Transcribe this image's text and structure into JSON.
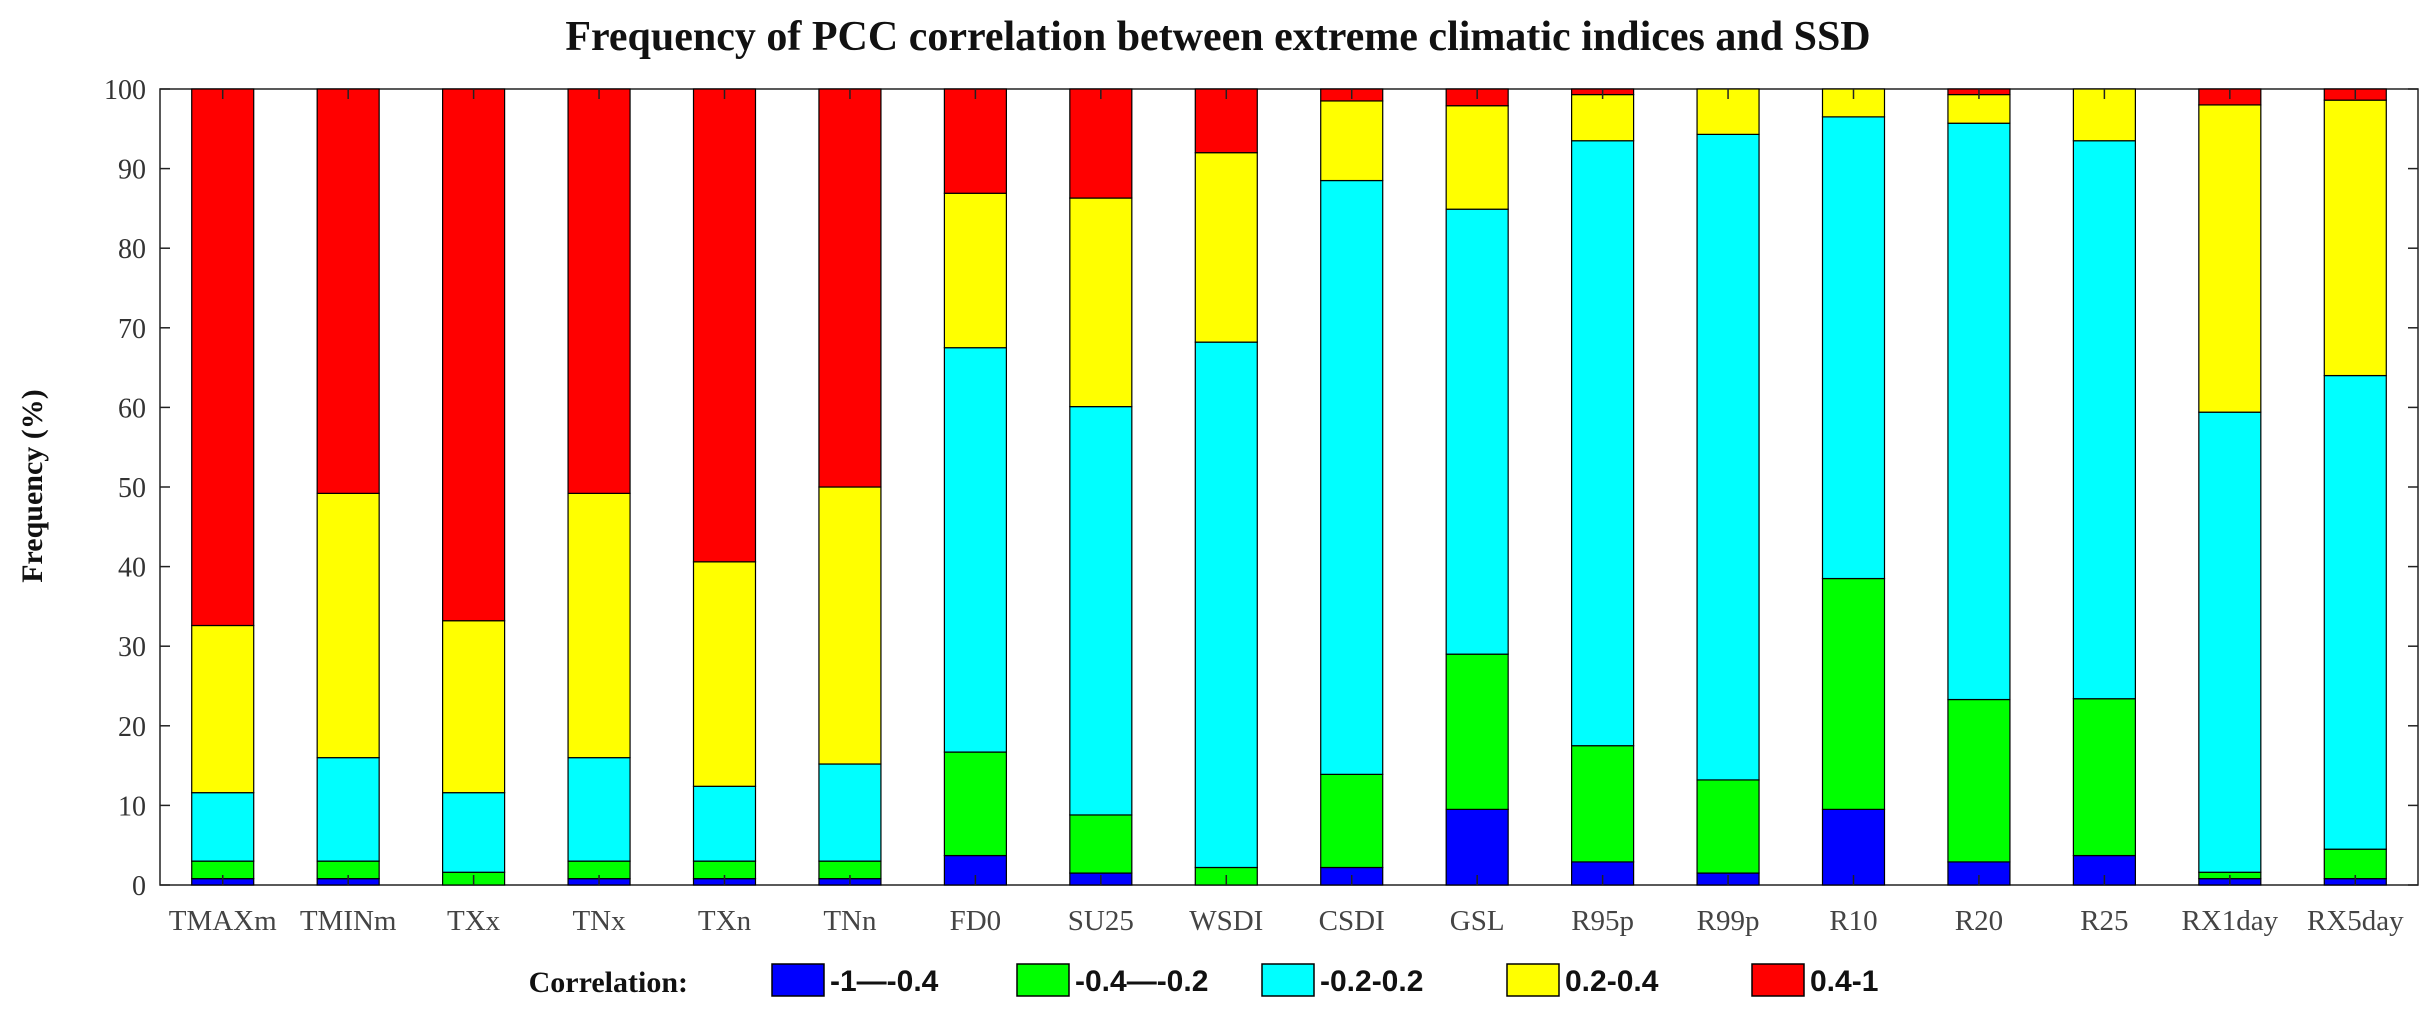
{
  "chart_data": {
    "type": "bar",
    "stacked": true,
    "title": "Frequency of PCC correlation between extreme climatic indices and SSD",
    "xlabel": "",
    "ylabel": "Frequency (%)",
    "ylim": [
      0,
      100
    ],
    "yticks": [
      0,
      10,
      20,
      30,
      40,
      50,
      60,
      70,
      80,
      90,
      100
    ],
    "categories": [
      "TMAXm",
      "TMINm",
      "TXx",
      "TNx",
      "TXn",
      "TNn",
      "FD0",
      "SU25",
      "WSDI",
      "CSDI",
      "GSL",
      "R95p",
      "R99p",
      "R10",
      "R20",
      "R25",
      "RX1day",
      "RX5day"
    ],
    "legend_title": "Correlation:",
    "legend_position": "bottom",
    "series": [
      {
        "name": "-1—-0.4",
        "color": "#0000ff",
        "values": [
          0.8,
          0.8,
          0.0,
          0.8,
          0.8,
          0.8,
          3.7,
          1.5,
          0.0,
          2.2,
          9.5,
          2.9,
          1.5,
          9.5,
          2.9,
          3.7,
          0.8,
          0.8
        ]
      },
      {
        "name": "-0.4—-0.2",
        "color": "#00ff00",
        "values": [
          2.2,
          2.2,
          1.6,
          2.2,
          2.2,
          2.2,
          13.0,
          7.3,
          2.2,
          11.7,
          19.5,
          14.6,
          11.7,
          29.0,
          20.4,
          19.7,
          0.8,
          3.7
        ]
      },
      {
        "name": "-0.2-0.2",
        "color": "#00ffff",
        "values": [
          8.6,
          13.0,
          10.0,
          13.0,
          9.4,
          12.2,
          50.8,
          51.3,
          66.0,
          74.6,
          55.9,
          76.0,
          81.1,
          58.0,
          72.4,
          70.1,
          57.8,
          59.5
        ]
      },
      {
        "name": "0.2-0.4",
        "color": "#ffff00",
        "values": [
          21.0,
          33.2,
          21.6,
          33.2,
          28.2,
          34.8,
          19.4,
          26.2,
          23.8,
          10.0,
          13.0,
          5.8,
          5.7,
          3.5,
          3.6,
          6.5,
          38.6,
          34.6
        ]
      },
      {
        "name": "0.4-1",
        "color": "#ff0000",
        "values": [
          67.4,
          50.8,
          66.8,
          50.8,
          59.4,
          50.0,
          13.1,
          13.7,
          8.0,
          1.5,
          2.1,
          0.7,
          0.0,
          0.0,
          0.7,
          0.0,
          2.0,
          1.4
        ]
      }
    ]
  }
}
